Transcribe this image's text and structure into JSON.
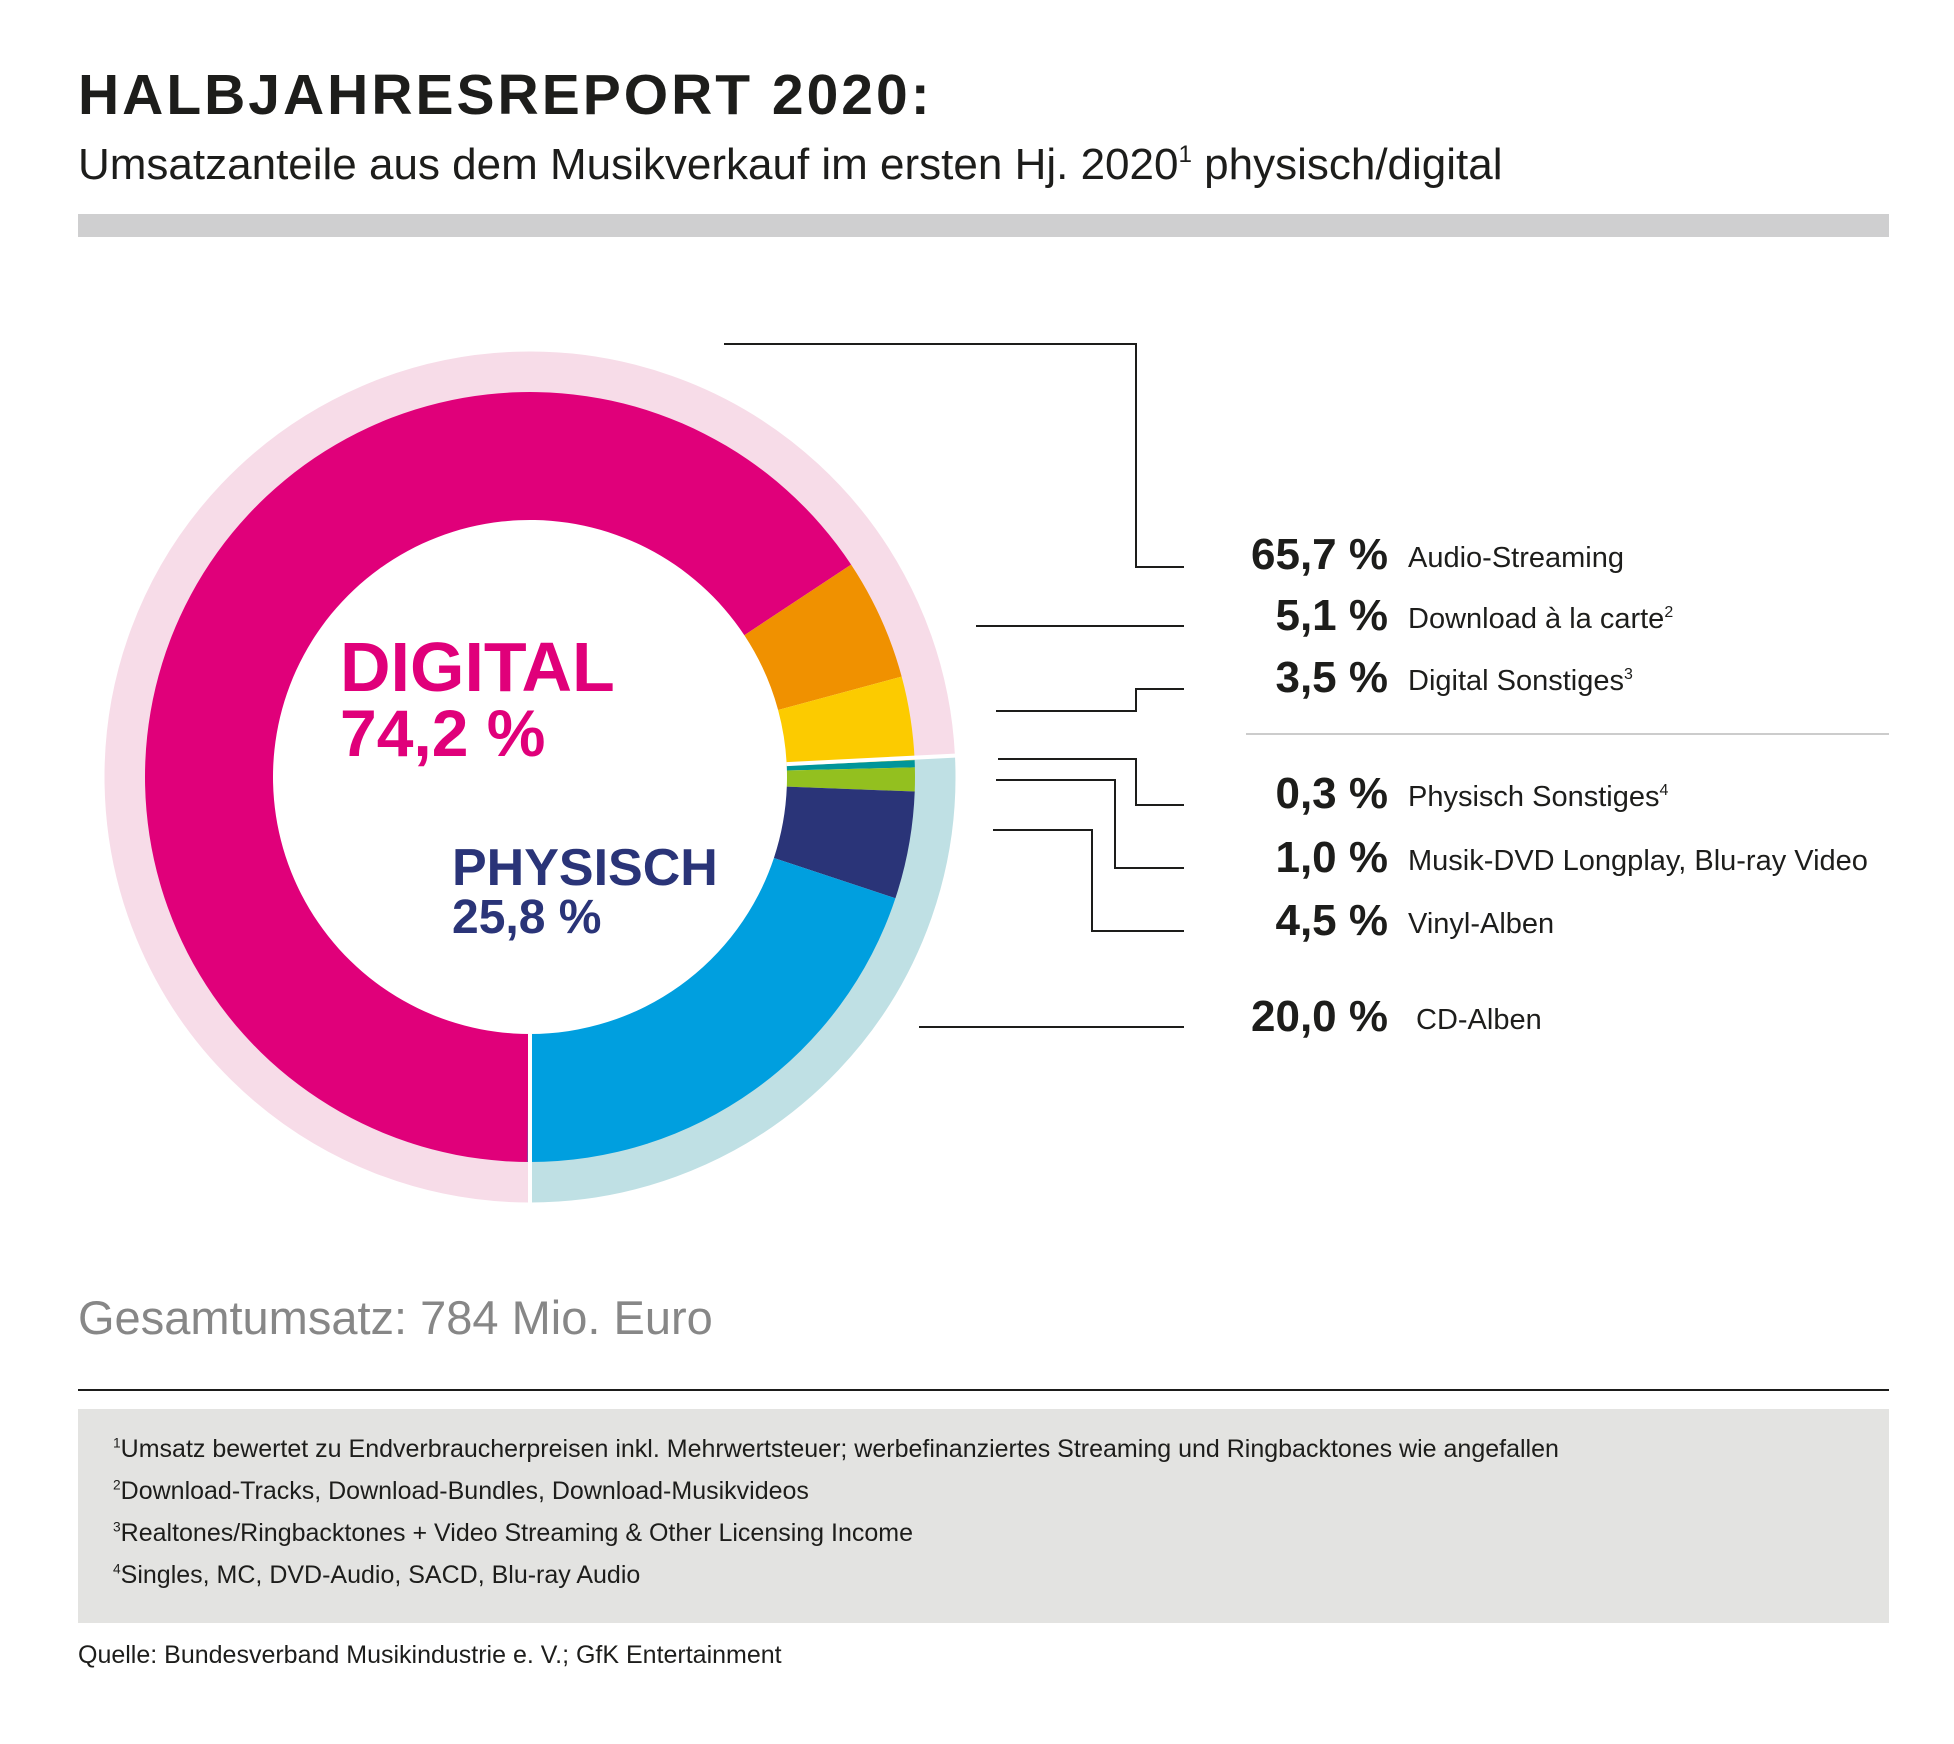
{
  "header": {
    "title": "HALBJAHRESREPORT 2020:",
    "subtitle": "Umsatzanteile aus dem Musikverkauf im ersten Hj. 2020",
    "subtitle_sup": "1",
    "subtitle_end": " physisch/digital"
  },
  "chart_data": {
    "type": "pie",
    "variant": "donut",
    "unit": "%",
    "groups": [
      {
        "name": "DIGITAL",
        "value_label": "74,2 %",
        "value": 74.2,
        "color": "#e0007a",
        "ring_color": "#f7dce8"
      },
      {
        "name": "PHYSISCH",
        "value_label": "25,8 %",
        "value": 25.8,
        "color": "#2a3478",
        "ring_color": "#bfe0e4"
      }
    ],
    "slices": [
      {
        "label": "Audio-Streaming",
        "sup": "",
        "value": 65.7,
        "value_label": "65,7 %",
        "group": "DIGITAL",
        "color": "#e0007a"
      },
      {
        "label": "Download à la carte",
        "sup": "2",
        "value": 5.1,
        "value_label": "5,1 %",
        "group": "DIGITAL",
        "color": "#f09100"
      },
      {
        "label": "Digital Sonstiges",
        "sup": "3",
        "value": 3.5,
        "value_label": "3,5 %",
        "group": "DIGITAL",
        "color": "#fccb00"
      },
      {
        "label": "Physisch Sonstiges",
        "sup": "4",
        "value": 0.3,
        "value_label": "0,3 %",
        "group": "PHYSISCH",
        "color": "#00959a"
      },
      {
        "label": "Musik-DVD Longplay, Blu-ray Video",
        "sup": "",
        "value": 1.0,
        "value_label": "1,0 %",
        "group": "PHYSISCH",
        "color": "#93c01f"
      },
      {
        "label": "Vinyl-Alben",
        "sup": "",
        "value": 4.5,
        "value_label": "4,5 %",
        "group": "PHYSISCH",
        "color": "#2a3478"
      },
      {
        "label": "CD-Alben",
        "sup": "",
        "value": 20.0,
        "value_label": "20,0 %",
        "group": "PHYSISCH",
        "color": "#009fdf"
      }
    ],
    "start": "bottom",
    "direction": "clockwise"
  },
  "total": "Gesamtumsatz: 784 Mio. Euro",
  "footnotes": [
    {
      "sup": "1",
      "text": "Umsatz bewertet zu Endverbraucherpreisen inkl. Mehrwertsteuer; werbefinanziertes Streaming und Ringbacktones wie angefallen"
    },
    {
      "sup": "2",
      "text": "Download-Tracks, Download-Bundles, Download-Musikvideos"
    },
    {
      "sup": "3",
      "text": "Realtones/Ringbacktones + Video Streaming & Other Licensing Income"
    },
    {
      "sup": "4",
      "text": "Singles, MC, DVD-Audio, SACD, Blu-ray Audio"
    }
  ],
  "source": "Quelle: Bundesverband Musikindustrie e. V.; GfK Entertainment"
}
